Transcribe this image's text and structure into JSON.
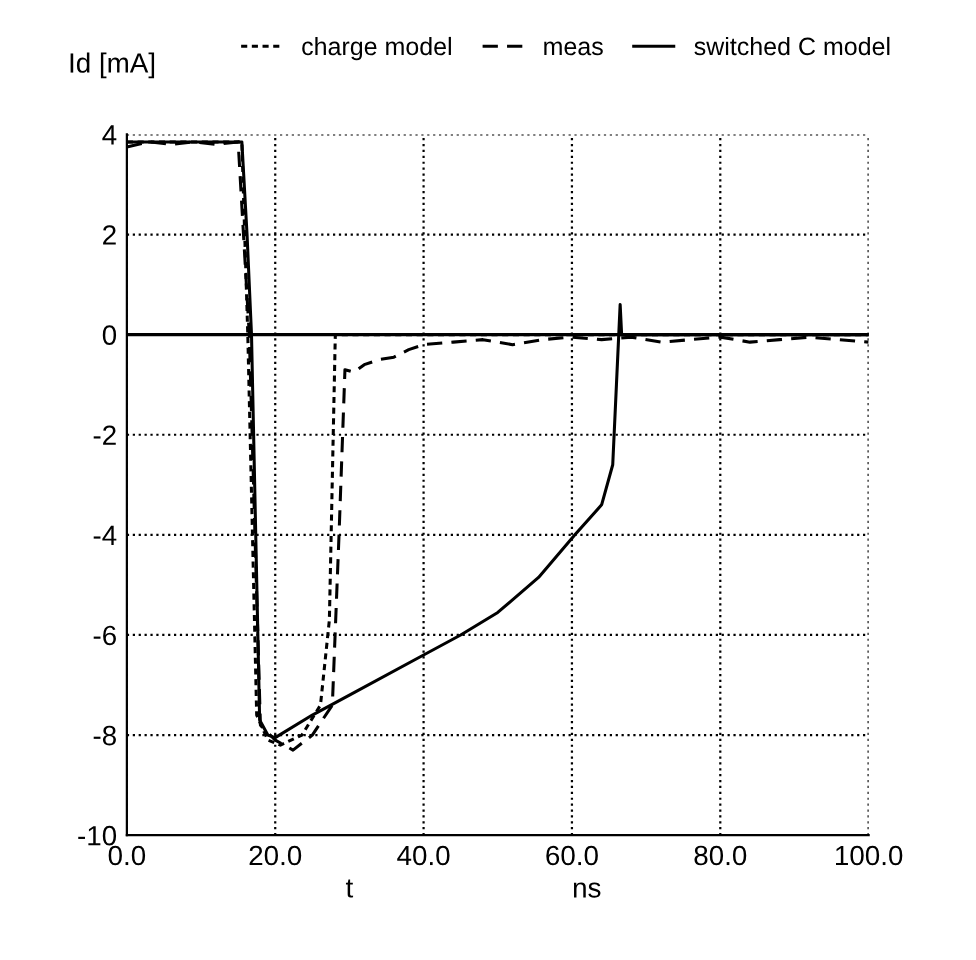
{
  "chart_data": {
    "type": "line",
    "ylabel": "Id [mA]",
    "xlabel": "t",
    "annotations": [
      "ns"
    ],
    "xlim": [
      0,
      100
    ],
    "ylim": [
      -10,
      4
    ],
    "xticks": [
      {
        "value": 0,
        "label": "0.0"
      },
      {
        "value": 20,
        "label": "20.0"
      },
      {
        "value": 40,
        "label": "40.0"
      },
      {
        "value": 60,
        "label": "60.0"
      },
      {
        "value": 80,
        "label": "80.0"
      },
      {
        "value": 100,
        "label": "100.0"
      }
    ],
    "yticks": [
      -10,
      -8,
      -6,
      -4,
      -2,
      0,
      2,
      4
    ],
    "grid": true,
    "legend": "top",
    "marker": "none",
    "ref_lines": [
      {
        "axis": "y",
        "value": 0,
        "color": "#000000",
        "line_style": "solid"
      }
    ],
    "series": [
      {
        "name": "charge model",
        "color": "#000000",
        "line_style": "dotted",
        "x": [
          0,
          15.5,
          16.3,
          17.5,
          19,
          20.7,
          23.6,
          26.1,
          27.3,
          28.1,
          30,
          100
        ],
        "values": [
          3.85,
          3.85,
          0,
          -7.6,
          -8.1,
          -8.2,
          -8.0,
          -7.4,
          -5.7,
          0,
          0,
          0
        ]
      },
      {
        "name": "meas",
        "color": "#000000",
        "line_style": "dashed",
        "x": [
          0,
          3,
          6,
          9,
          12,
          15,
          16.5,
          18,
          20,
          22.4,
          25,
          27.7,
          28.6,
          29.4,
          30.6,
          32,
          34,
          36,
          38,
          40,
          44,
          48,
          52,
          56,
          60,
          64,
          68,
          72,
          76,
          80,
          84,
          88,
          92,
          96,
          100
        ],
        "values": [
          3.75,
          3.85,
          3.8,
          3.85,
          3.8,
          3.85,
          0,
          -7.8,
          -8.1,
          -8.3,
          -8.0,
          -7.4,
          -4,
          -0.7,
          -0.75,
          -0.6,
          -0.5,
          -0.45,
          -0.3,
          -0.2,
          -0.15,
          -0.1,
          -0.2,
          -0.1,
          -0.05,
          -0.1,
          -0.05,
          -0.15,
          -0.1,
          -0.05,
          -0.15,
          -0.1,
          -0.05,
          -0.1,
          -0.15
        ]
      },
      {
        "name": "switched C model",
        "color": "#000000",
        "line_style": "solid",
        "x": [
          0,
          15.5,
          16.2,
          16.8,
          17.9,
          19,
          20,
          25,
          30,
          40,
          45,
          50,
          55.5,
          60.4,
          64,
          65.5,
          66,
          66.5,
          66.7,
          67,
          100
        ],
        "values": [
          3.85,
          3.85,
          2,
          0,
          -7.7,
          -8.0,
          -8.05,
          -7.6,
          -7.2,
          -6.4,
          -6.0,
          -5.55,
          -4.85,
          -4.0,
          -3.4,
          -2.6,
          -1,
          0.6,
          0,
          0,
          0
        ]
      }
    ]
  }
}
